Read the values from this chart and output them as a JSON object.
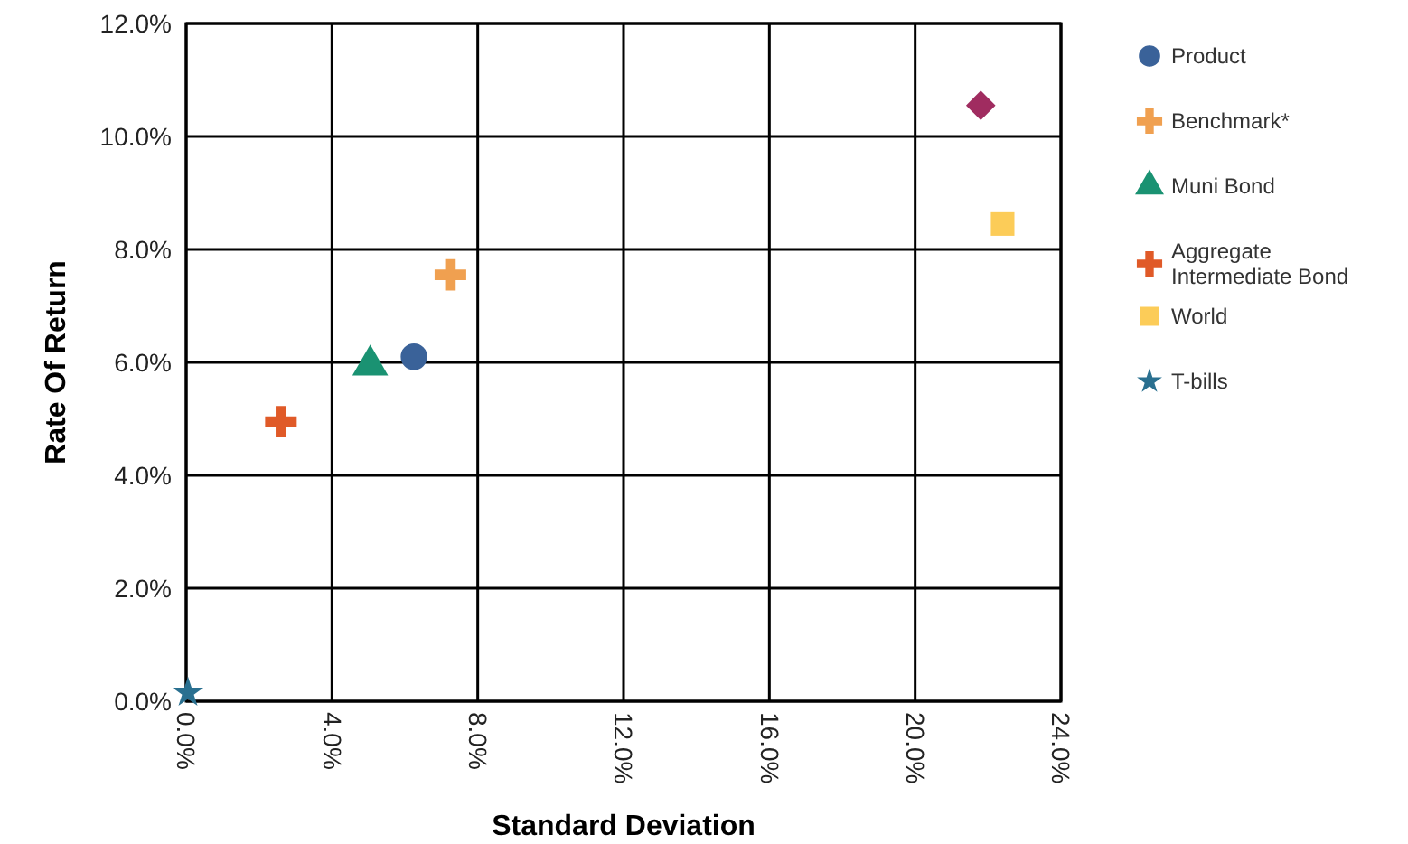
{
  "chart_data": {
    "type": "scatter",
    "xlabel": "Standard Deviation",
    "ylabel": "Rate Of Return",
    "xlim": [
      0,
      24
    ],
    "ylim": [
      0,
      12
    ],
    "xticks": [
      {
        "value": 0,
        "label": "0.0%"
      },
      {
        "value": 4,
        "label": "4.0%"
      },
      {
        "value": 8,
        "label": "8.0%"
      },
      {
        "value": 12,
        "label": "12.0%"
      },
      {
        "value": 16,
        "label": "16.0%"
      },
      {
        "value": 20,
        "label": "20.0%"
      },
      {
        "value": 24,
        "label": "24.0%"
      }
    ],
    "yticks": [
      {
        "value": 0,
        "label": "0.0%"
      },
      {
        "value": 2,
        "label": "2.0%"
      },
      {
        "value": 4,
        "label": "4.0%"
      },
      {
        "value": 6,
        "label": "6.0%"
      },
      {
        "value": 8,
        "label": "8.0%"
      },
      {
        "value": 10,
        "label": "10.0%"
      },
      {
        "value": 12,
        "label": "12.0%"
      }
    ],
    "grid": true,
    "legend": "right",
    "series": [
      {
        "name": "Product",
        "color": "#3a6299",
        "marker": "circle",
        "x": [
          6.25
        ],
        "values": [
          6.1
        ]
      },
      {
        "name": "Benchmark*",
        "color": "#f0a050",
        "marker": "cross",
        "x": [
          7.25
        ],
        "values": [
          7.55
        ]
      },
      {
        "name": "Muni Bond",
        "color": "#1a9272",
        "marker": "triangle",
        "x": [
          5.05
        ],
        "values": [
          5.95
        ]
      },
      {
        "name": "Aggregate Intermediate Bond",
        "color": "#e05a28",
        "marker": "cross",
        "x": [
          2.6
        ],
        "values": [
          4.95
        ]
      },
      {
        "color": "#a02c60",
        "marker": "diamond",
        "x": [
          21.8
        ],
        "values": [
          10.55
        ]
      },
      {
        "name": "World",
        "color": "#fccc58",
        "marker": "square",
        "x": [
          22.4
        ],
        "values": [
          8.45
        ]
      },
      {
        "name": "T-bills",
        "color": "#2a7090",
        "marker": "star",
        "x": [
          0.05
        ],
        "values": [
          0.15
        ]
      }
    ]
  }
}
